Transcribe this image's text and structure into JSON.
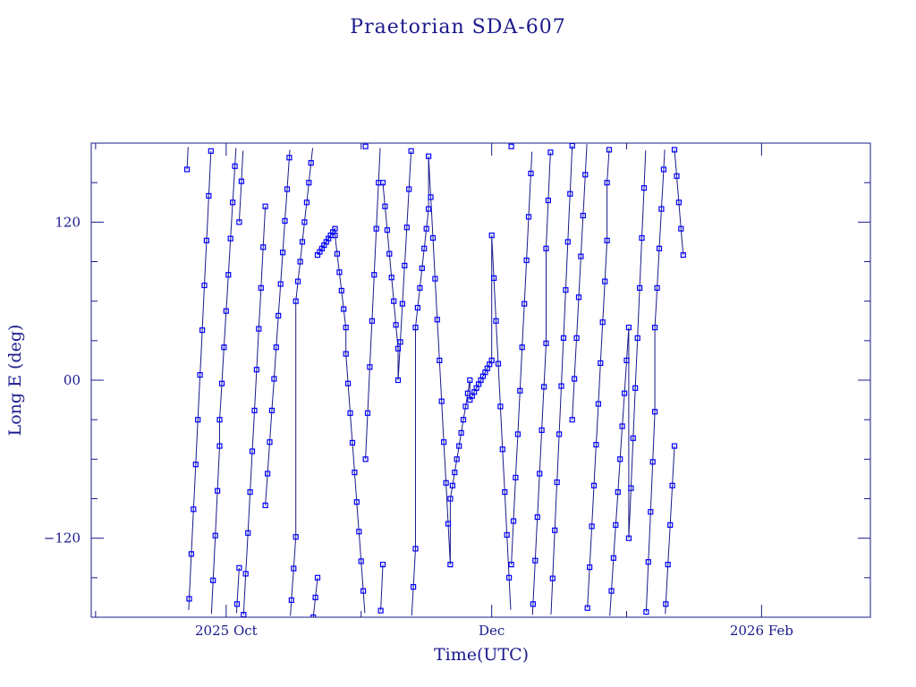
{
  "chart_data": {
    "type": "line",
    "title": "Praetorian SDA-607",
    "xlabel": "Time(UTC)",
    "ylabel": "Long E (deg)",
    "x_unit": "date",
    "xlim": [
      "2025-08-31",
      "2026-02-26"
    ],
    "ylim": [
      -180,
      180
    ],
    "grid": false,
    "legend": "none",
    "markers": "square",
    "wrap_longitude": true,
    "colors": {
      "axis": "#1a1a8c",
      "line": "#1a1a8c",
      "marker": "#0000ff"
    },
    "x_ticks": [
      {
        "date": "2025-10-01",
        "label": "2025 Oct"
      },
      {
        "date": "2025-12-01",
        "label": "Dec"
      },
      {
        "date": "2026-02-01",
        "label": "2026 Feb"
      }
    ],
    "y_ticks": [
      {
        "value": -120,
        "label": "−120"
      },
      {
        "value": 0,
        "label": "00"
      },
      {
        "value": 120,
        "label": "120"
      }
    ],
    "series": [
      {
        "start_date": "2025-09-22",
        "segments": [
          {
            "days": 7.5,
            "rate": 68,
            "start_lon": 160
          },
          {
            "days": 4.5,
            "rate": 55,
            "start_lon": -30
          },
          {
            "days": 6.0,
            "rate": 62,
            "start_lon": 120
          },
          {
            "days": 7.0,
            "rate": 48,
            "start_lon": -95
          },
          {
            "days": 5.0,
            "rate": 30,
            "start_lon": 60
          },
          {
            "days": 4.0,
            "rate": 5,
            "start_lon": 95
          },
          {
            "days": 2.5,
            "rate": -28,
            "start_lon": 110
          },
          {
            "days": 4.5,
            "rate": -45,
            "start_lon": 20
          },
          {
            "days": 4.0,
            "rate": 70,
            "start_lon": -60
          },
          {
            "days": 3.5,
            "rate": -36,
            "start_lon": 150
          },
          {
            "days": 4.0,
            "rate": 58,
            "start_lon": 0
          },
          {
            "days": 3.0,
            "rate": 30,
            "start_lon": 40
          },
          {
            "days": 5.0,
            "rate": -62,
            "start_lon": 170
          },
          {
            "days": 4.5,
            "rate": 20,
            "start_lon": -90
          },
          {
            "days": 5.0,
            "rate": 6,
            "start_lon": -15
          },
          {
            "days": 4.5,
            "rate": -65,
            "start_lon": 110
          },
          {
            "days": 8.0,
            "rate": 66,
            "start_lon": -140
          },
          {
            "days": 6.0,
            "rate": 73,
            "start_lon": 100
          },
          {
            "days": 8.0,
            "rate": 62,
            "start_lon": -30
          },
          {
            "days": 5.0,
            "rate": 50,
            "start_lon": 150
          },
          {
            "days": 6.0,
            "rate": 76,
            "start_lon": -120
          },
          {
            "days": 4.5,
            "rate": 60,
            "start_lon": 40
          },
          {
            "days": 2.0,
            "rate": -40,
            "start_lon": 175
          }
        ]
      }
    ]
  }
}
